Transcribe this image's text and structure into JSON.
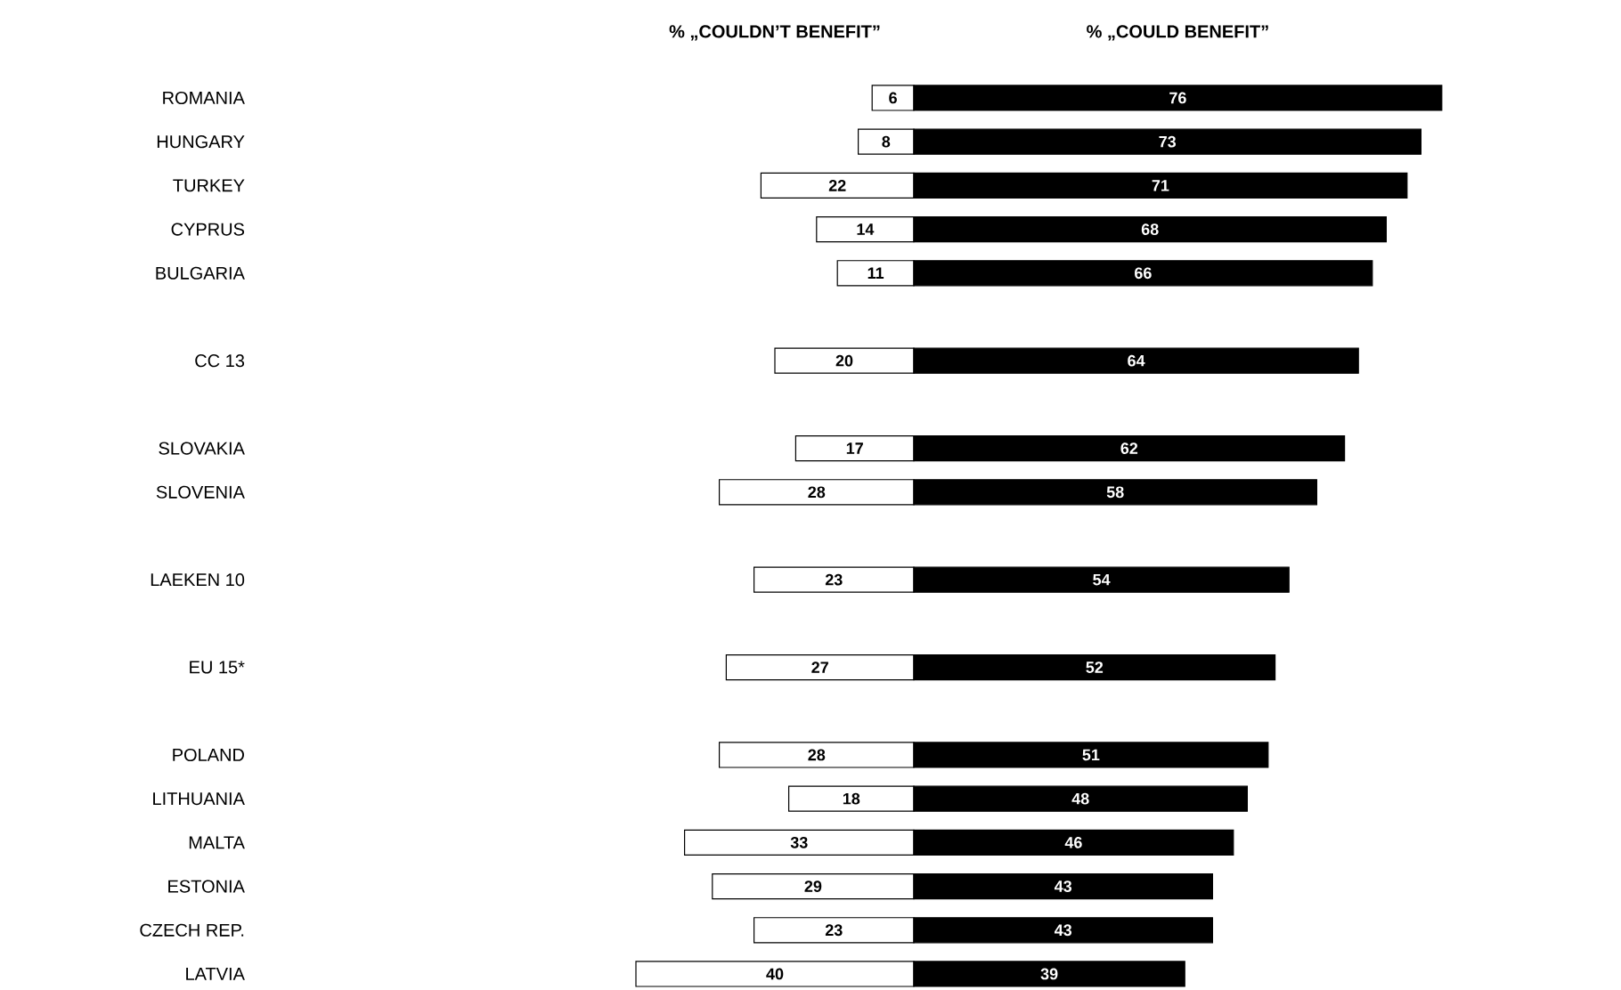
{
  "chart_data": [
    {
      "type": "bar",
      "orientation": "horizontal",
      "title": "% „COULDN’T BENEFIT”",
      "data_labels": true,
      "tick_labels": "y",
      "xlim": [
        40,
        0
      ],
      "categories": [
        "ROMANIA",
        "HUNGARY",
        "TURKEY",
        "CYPRUS",
        "BULGARIA",
        null,
        "CC 13",
        null,
        "SLOVAKIA",
        "SLOVENIA",
        null,
        "LAEKEN 10",
        null,
        "EU 15*",
        null,
        "POLAND",
        "LITHUANIA",
        "MALTA",
        "ESTONIA",
        "CZECH REP.",
        "LATVIA"
      ],
      "series": [
        {
          "color": "#ffffff",
          "values": [
            6,
            8,
            22,
            14,
            11,
            null,
            20,
            null,
            17,
            28,
            null,
            23,
            null,
            27,
            null,
            28,
            18,
            33,
            29,
            23,
            40
          ]
        }
      ]
    },
    {
      "type": "bar",
      "orientation": "horizontal",
      "title": "% „COULD BENEFIT”",
      "data_labels": true,
      "tick_labels": false,
      "xlim": [
        0,
        76
      ],
      "categories": [
        null,
        null,
        null,
        null,
        null,
        null,
        null,
        null,
        null,
        null,
        null,
        null,
        null,
        null,
        null,
        null,
        null,
        null,
        null,
        null,
        null
      ],
      "series": [
        {
          "color": "#000000",
          "values": [
            76,
            73,
            71,
            68,
            66,
            null,
            64,
            null,
            62,
            58,
            null,
            54,
            null,
            52,
            null,
            51,
            48,
            46,
            43,
            43,
            39
          ]
        }
      ]
    }
  ]
}
